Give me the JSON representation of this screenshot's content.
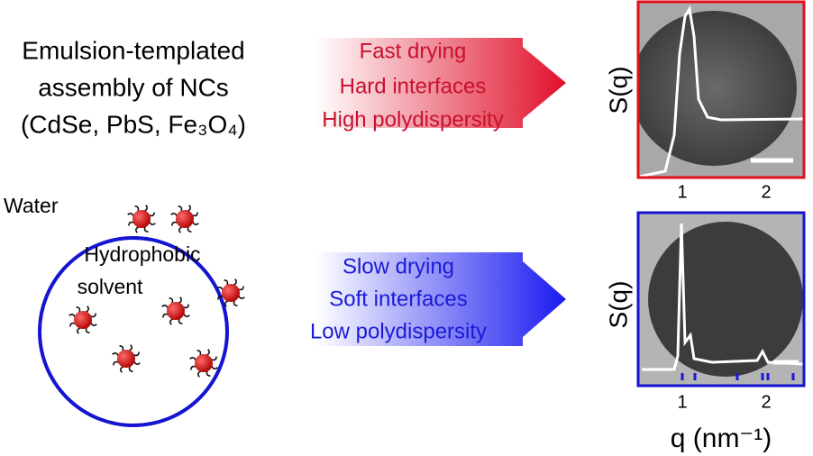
{
  "left": {
    "title_lines": [
      "Emulsion-templated",
      "assembly of NCs",
      "(CdSe, PbS, Fe₃O₄)"
    ],
    "outer_label": "Water",
    "inner_label_lines": [
      "Hydrophobic",
      "solvent"
    ]
  },
  "top_arrow": {
    "lines": [
      "Fast drying",
      "Hard interfaces",
      "High polydispersity"
    ]
  },
  "bottom_arrow": {
    "lines": [
      "Slow drying",
      "Soft interfaces",
      "Low polydispersity"
    ]
  },
  "top_plot": {
    "y_label": "S(q)",
    "x_ticks": [
      "1",
      "2"
    ]
  },
  "bottom_plot": {
    "y_label": "S(q)",
    "x_ticks": [
      "1",
      "2"
    ],
    "x_label": "q (nm⁻¹)"
  }
}
